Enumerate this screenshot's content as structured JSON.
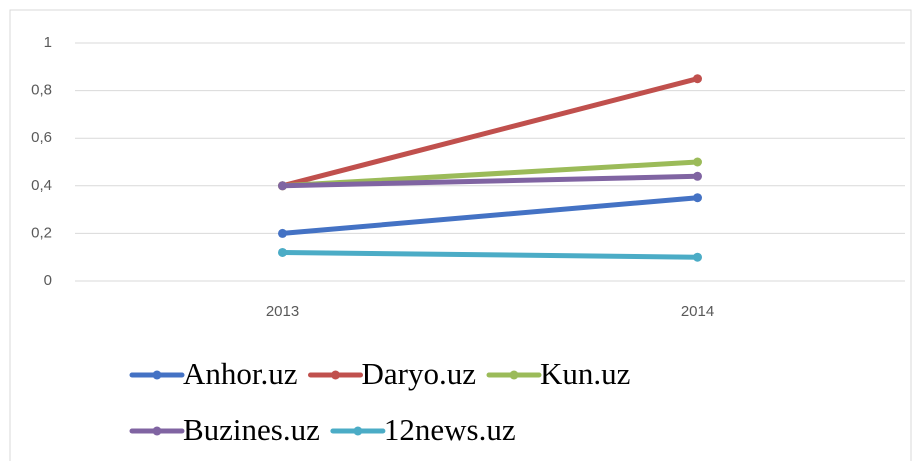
{
  "chart_data": {
    "type": "line",
    "categories": [
      "2013",
      "2014"
    ],
    "series": [
      {
        "name": "Anhor.uz",
        "color": "#4472c4",
        "values": [
          0.2,
          0.35
        ]
      },
      {
        "name": "Daryo.uz",
        "color": "#c0504d",
        "values": [
          0.4,
          0.85
        ]
      },
      {
        "name": "Kun.uz",
        "color": "#9bbb59",
        "values": [
          0.4,
          0.5
        ]
      },
      {
        "name": "Buzines.uz",
        "color": "#8064a2",
        "values": [
          0.4,
          0.44
        ]
      },
      {
        "name": "12news.uz",
        "color": "#4bacc6",
        "values": [
          0.12,
          0.1
        ]
      }
    ],
    "ylim": [
      0,
      1
    ],
    "yticks": [
      0,
      {
        "value": 0.2,
        "label": "0,2"
      },
      {
        "value": 0.4,
        "label": "0,4"
      },
      {
        "value": 0.6,
        "label": "0,6"
      },
      {
        "value": 0.8,
        "label": "0,8"
      },
      1
    ],
    "grid": true,
    "legend": "bottom"
  }
}
